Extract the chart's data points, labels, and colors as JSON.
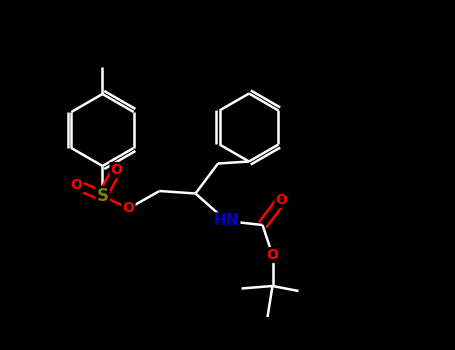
{
  "background_color": "#000000",
  "bond_color": "#ffffff",
  "atom_colors": {
    "S": "#808000",
    "O": "#ff0000",
    "N": "#0000cd",
    "C": "#ffffff",
    "H": "#ffffff"
  },
  "figsize": [
    4.55,
    3.5
  ],
  "dpi": 100
}
